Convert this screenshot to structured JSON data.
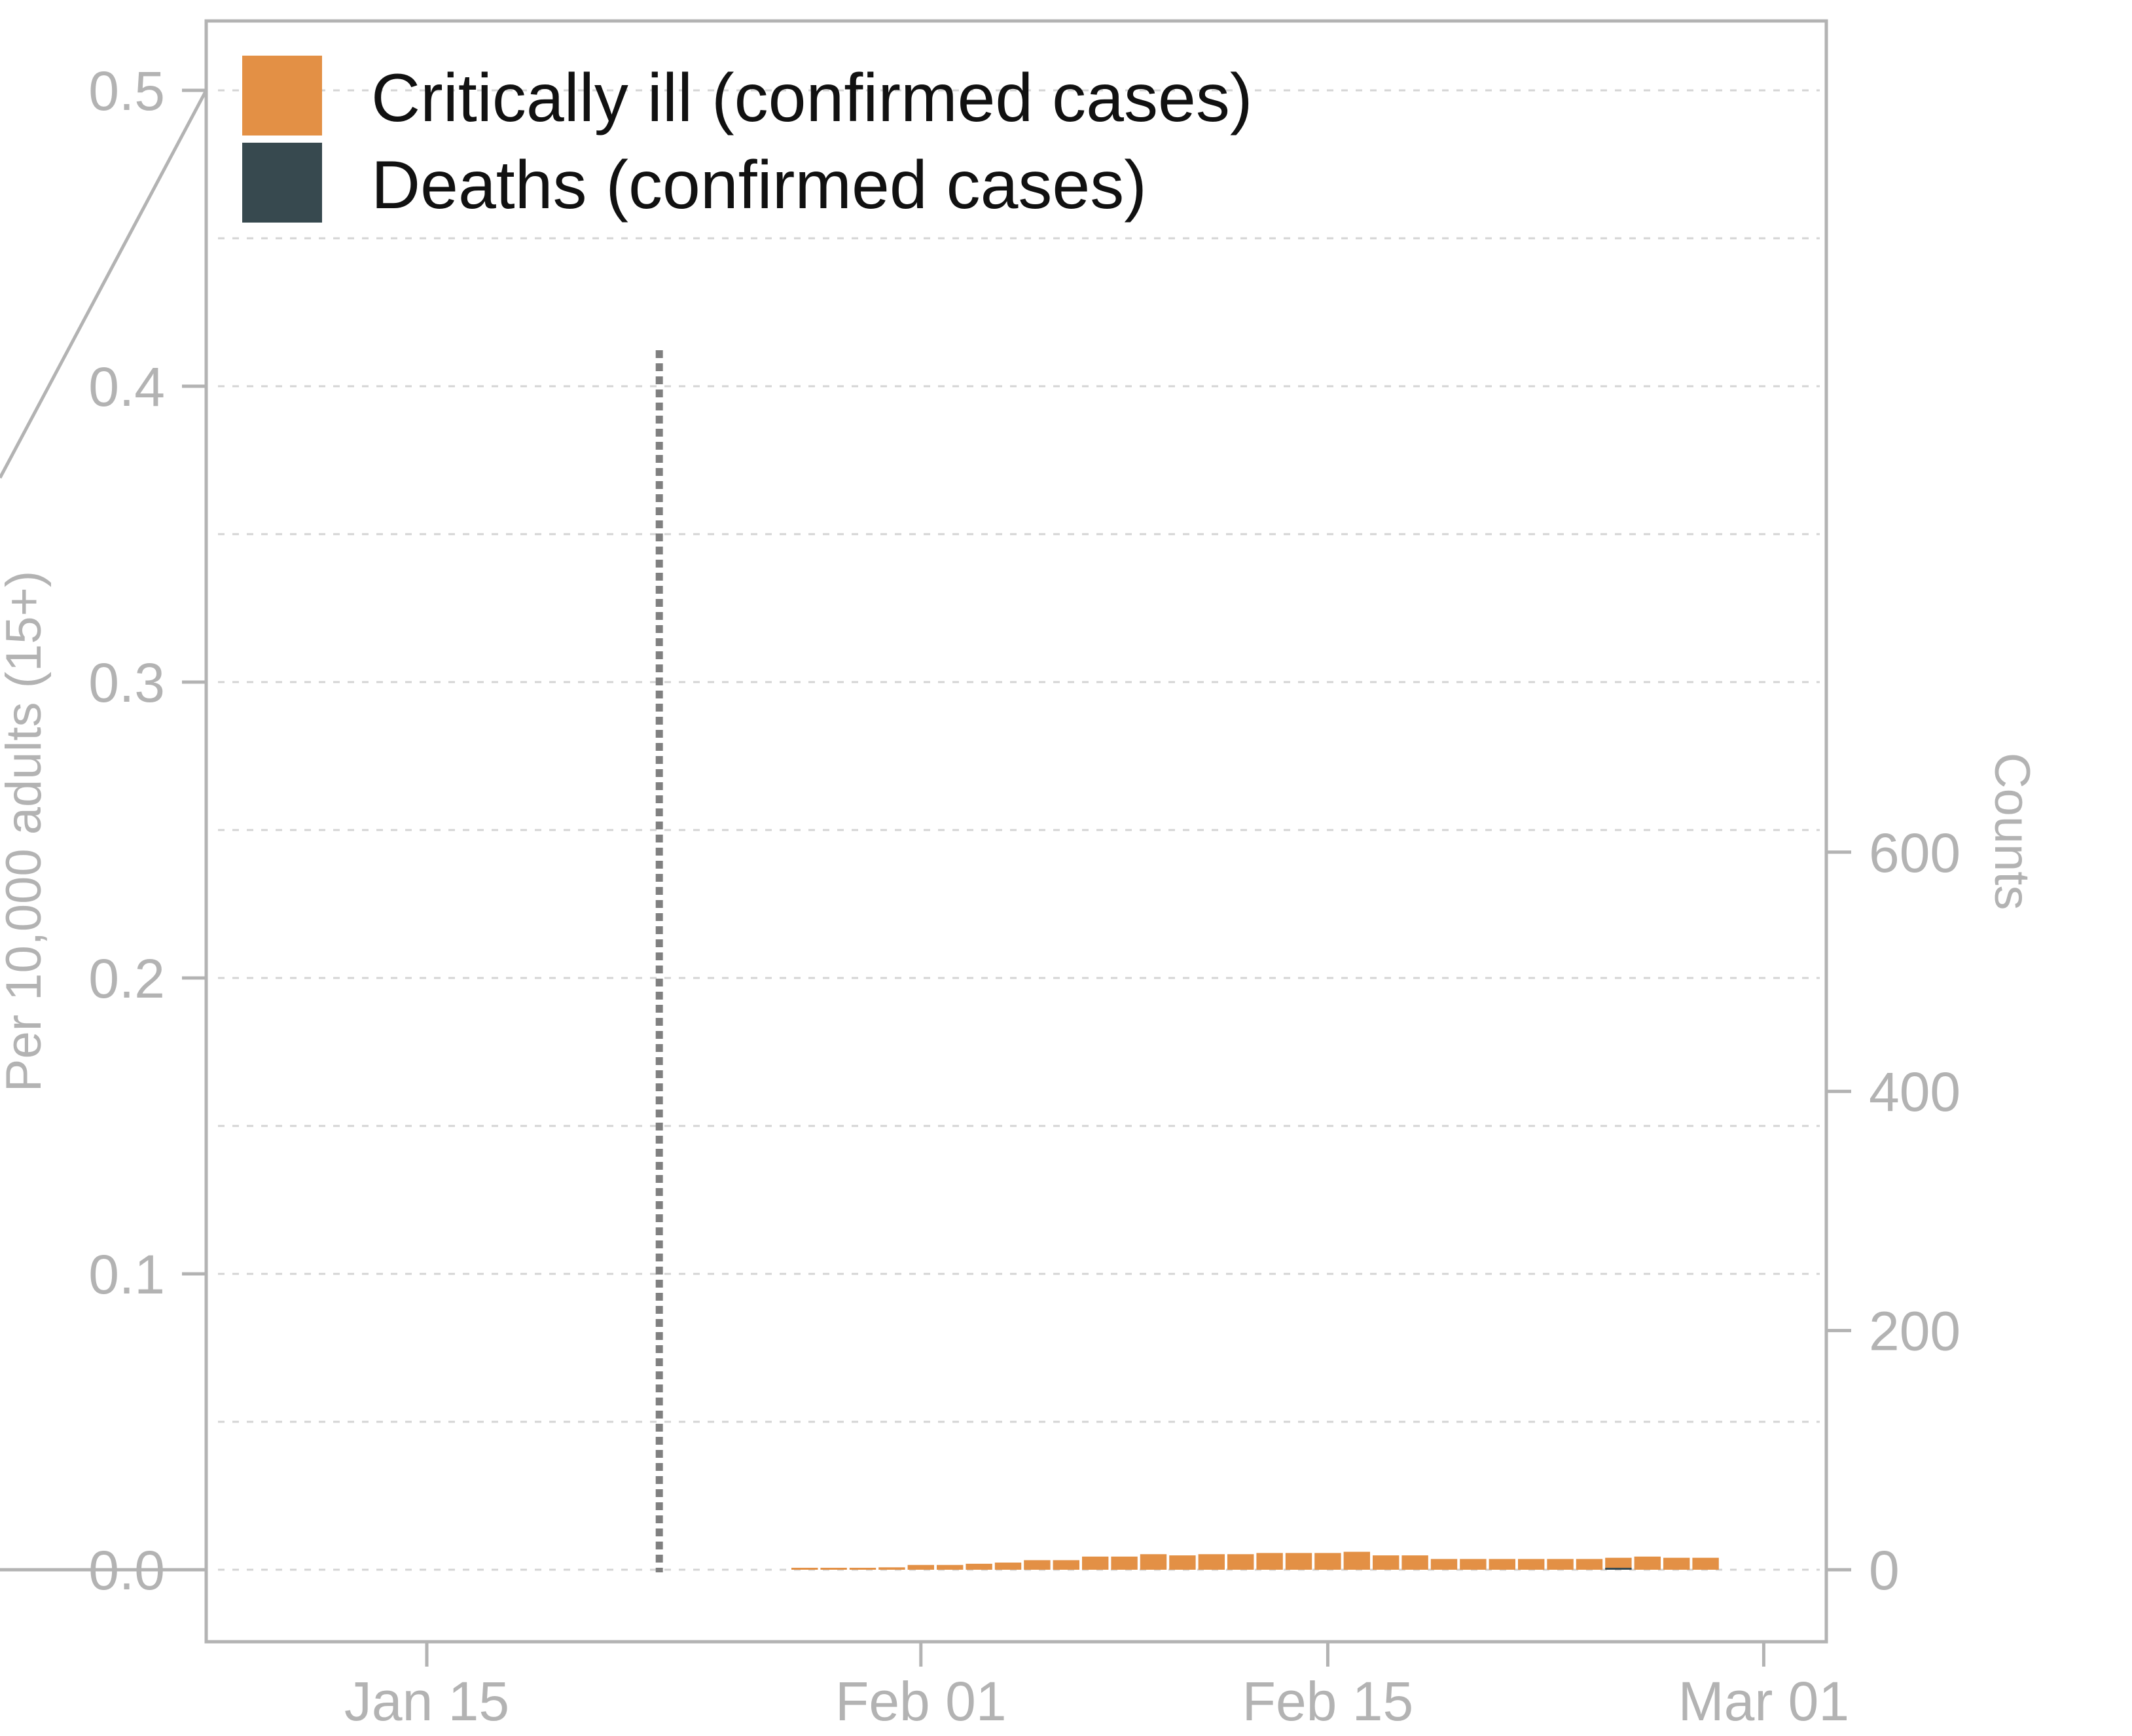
{
  "chart_data": {
    "type": "bar",
    "legend_position": "top-left",
    "grid": true,
    "series": [
      {
        "name": "Critically ill (confirmed cases)",
        "color": "#e39045",
        "x": [
          "Jan 28",
          "Jan 29",
          "Jan 30",
          "Jan 31",
          "Feb 01",
          "Feb 02",
          "Feb 03",
          "Feb 04",
          "Feb 05",
          "Feb 06",
          "Feb 07",
          "Feb 08",
          "Feb 09",
          "Feb 10",
          "Feb 11",
          "Feb 12",
          "Feb 13",
          "Feb 14",
          "Feb 15",
          "Feb 16",
          "Feb 17",
          "Feb 18",
          "Feb 19",
          "Feb 20",
          "Feb 21",
          "Feb 22",
          "Feb 23",
          "Feb 24",
          "Feb 25",
          "Feb 26",
          "Feb 27",
          "Feb 28"
        ],
        "values": [
          1,
          1,
          1,
          2,
          4,
          4,
          5,
          6,
          8,
          8,
          11,
          11,
          13,
          12,
          13,
          13,
          14,
          14,
          14,
          15,
          12,
          12,
          9,
          9,
          9,
          9,
          9,
          9,
          10,
          11,
          10,
          10
        ]
      },
      {
        "name": "Deaths (confirmed cases)",
        "color": "#37494f",
        "x": [
          "Feb 25"
        ],
        "values": [
          1
        ]
      }
    ],
    "event_line_x": "Jan 23",
    "x_ticks": [
      {
        "date": "Jan 15",
        "label": "Jan 15"
      },
      {
        "date": "Feb 01",
        "label": "Feb 01"
      },
      {
        "date": "Feb 15",
        "label": "Feb 15"
      },
      {
        "date": "Mar 01",
        "label": "Mar 01"
      }
    ],
    "left_axis": {
      "label": "Per 10,000 adults (15+)",
      "ticks": [
        "0.0",
        "0.1",
        "0.2",
        "0.3",
        "0.4",
        "0.5"
      ],
      "range": [
        0,
        0.5
      ]
    },
    "right_axis": {
      "label": "Counts",
      "ticks": [
        "0",
        "200",
        "400",
        "600"
      ],
      "range": [
        0,
        620
      ]
    }
  }
}
